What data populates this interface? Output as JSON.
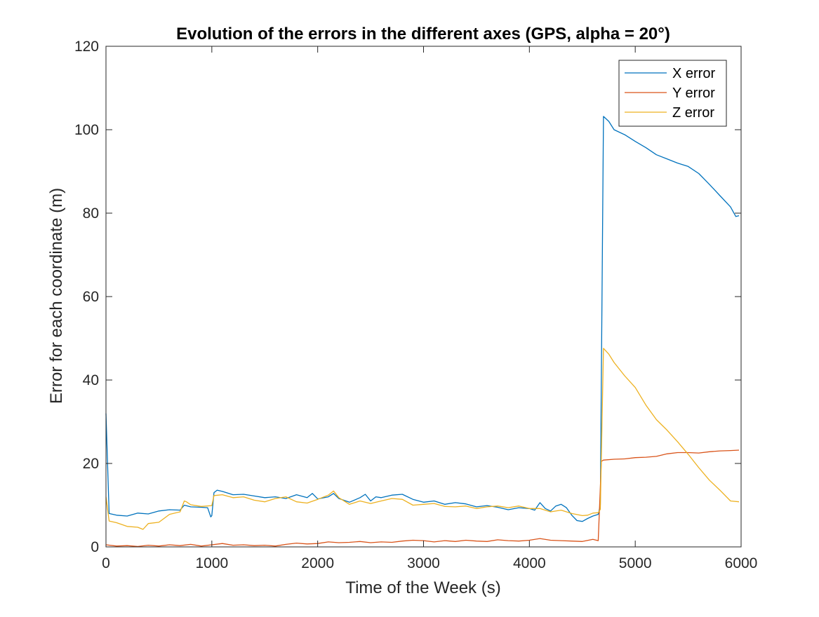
{
  "chart_data": {
    "type": "line",
    "title": "Evolution of the errors in the different axes (GPS, alpha = 20°)",
    "xlabel": "Time of the Week (s)",
    "ylabel": "Error for each coordinate (m)",
    "xlim": [
      0,
      6000
    ],
    "ylim": [
      0,
      120
    ],
    "xticks": [
      0,
      1000,
      2000,
      3000,
      4000,
      5000,
      6000
    ],
    "yticks": [
      0,
      20,
      40,
      60,
      80,
      100,
      120
    ],
    "xtick_labels": [
      "0",
      "1000",
      "2000",
      "3000",
      "4000",
      "5000",
      "6000"
    ],
    "ytick_labels": [
      "0",
      "20",
      "40",
      "60",
      "80",
      "100",
      "120"
    ],
    "grid": false,
    "box": true,
    "legend_position": "top-right",
    "series": [
      {
        "name": "X error",
        "color": "#0072BD",
        "x": [
          0,
          30,
          100,
          200,
          300,
          400,
          500,
          600,
          700,
          740,
          800,
          900,
          960,
          990,
          1000,
          1020,
          1050,
          1100,
          1200,
          1300,
          1400,
          1500,
          1600,
          1700,
          1800,
          1900,
          1950,
          2000,
          2100,
          2150,
          2200,
          2300,
          2400,
          2450,
          2500,
          2550,
          2600,
          2700,
          2800,
          2900,
          3000,
          3100,
          3200,
          3300,
          3400,
          3500,
          3600,
          3700,
          3800,
          3900,
          4000,
          4050,
          4100,
          4150,
          4200,
          4250,
          4300,
          4350,
          4400,
          4450,
          4500,
          4550,
          4600,
          4650,
          4670,
          4700,
          4750,
          4800,
          4900,
          5000,
          5100,
          5200,
          5300,
          5400,
          5500,
          5600,
          5700,
          5800,
          5900,
          5950,
          5980
        ],
        "values": [
          32,
          8,
          7.6,
          7.4,
          8.1,
          7.9,
          8.6,
          8.9,
          8.8,
          10,
          9.6,
          9.5,
          9.4,
          7.2,
          7.5,
          13,
          13.6,
          13.3,
          12.5,
          12.6,
          12.2,
          11.8,
          12,
          11.6,
          12.5,
          11.8,
          12.8,
          11.5,
          12,
          12.8,
          11.6,
          10.7,
          11.8,
          12.6,
          11,
          12,
          11.8,
          12.4,
          12.6,
          11.4,
          10.7,
          11,
          10.2,
          10.6,
          10.3,
          9.6,
          9.9,
          9.5,
          8.9,
          9.4,
          9.2,
          8.8,
          10.6,
          9.2,
          8.6,
          9.8,
          10.2,
          9.4,
          7.6,
          6.3,
          6.1,
          6.8,
          7.4,
          7.8,
          10,
          103.2,
          102,
          100,
          98.8,
          97.2,
          95.7,
          94,
          93,
          92,
          91.2,
          89.5,
          86.9,
          84.2,
          81.5,
          79.2,
          79.4
        ]
      },
      {
        "name": "Y error",
        "color": "#D95319",
        "x": [
          0,
          100,
          200,
          300,
          400,
          500,
          600,
          700,
          800,
          900,
          1000,
          1100,
          1200,
          1300,
          1400,
          1500,
          1600,
          1700,
          1800,
          1900,
          2000,
          2100,
          2200,
          2300,
          2400,
          2500,
          2600,
          2700,
          2800,
          2900,
          3000,
          3100,
          3200,
          3300,
          3400,
          3500,
          3600,
          3700,
          3800,
          3900,
          4000,
          4100,
          4200,
          4300,
          4400,
          4500,
          4600,
          4650,
          4680,
          4700,
          4800,
          4900,
          5000,
          5100,
          5200,
          5300,
          5400,
          5500,
          5600,
          5700,
          5800,
          5900,
          5980
        ],
        "values": [
          0.5,
          0.2,
          0.3,
          0.1,
          0.4,
          0.2,
          0.5,
          0.3,
          0.6,
          0.2,
          0.5,
          0.8,
          0.4,
          0.5,
          0.3,
          0.4,
          0.2,
          0.6,
          0.9,
          0.7,
          0.8,
          1.2,
          1.0,
          1.1,
          1.3,
          1.0,
          1.2,
          1.1,
          1.4,
          1.6,
          1.5,
          1.2,
          1.5,
          1.3,
          1.6,
          1.4,
          1.3,
          1.7,
          1.5,
          1.4,
          1.6,
          2.0,
          1.6,
          1.5,
          1.4,
          1.3,
          1.8,
          1.5,
          20.5,
          20.8,
          21.0,
          21.1,
          21.4,
          21.5,
          21.7,
          22.3,
          22.6,
          22.6,
          22.5,
          22.8,
          23.0,
          23.1,
          23.2
        ]
      },
      {
        "name": "Z error",
        "color": "#EDB120",
        "x": [
          0,
          30,
          100,
          200,
          300,
          350,
          400,
          500,
          600,
          700,
          740,
          760,
          800,
          900,
          1000,
          1020,
          1100,
          1200,
          1300,
          1400,
          1500,
          1600,
          1700,
          1800,
          1900,
          2000,
          2100,
          2150,
          2200,
          2300,
          2400,
          2500,
          2600,
          2700,
          2800,
          2900,
          3000,
          3100,
          3200,
          3300,
          3400,
          3500,
          3600,
          3700,
          3800,
          3900,
          4000,
          4100,
          4200,
          4300,
          4400,
          4500,
          4550,
          4600,
          4650,
          4670,
          4700,
          4750,
          4800,
          4900,
          5000,
          5100,
          5200,
          5300,
          5400,
          5500,
          5600,
          5700,
          5800,
          5900,
          5980
        ],
        "values": [
          12,
          6.2,
          5.8,
          4.9,
          4.7,
          4.2,
          5.6,
          5.9,
          7.8,
          8.4,
          11.0,
          10.8,
          10.1,
          9.7,
          9.9,
          12.3,
          12.5,
          11.8,
          12.0,
          11.2,
          10.8,
          11.6,
          12.0,
          10.8,
          10.5,
          11.4,
          12.4,
          13.4,
          11.8,
          10.2,
          11.0,
          10.4,
          11.0,
          11.6,
          11.4,
          10.0,
          10.2,
          10.4,
          9.7,
          9.6,
          9.8,
          9.2,
          9.6,
          9.8,
          9.4,
          9.8,
          9.2,
          9.2,
          8.4,
          8.8,
          8.0,
          7.5,
          7.6,
          8.1,
          8.2,
          9.0,
          47.6,
          46.2,
          44.2,
          41.0,
          38.2,
          34.0,
          30.5,
          28.0,
          25.2,
          22.2,
          19.0,
          16.0,
          13.6,
          11.0,
          10.8
        ]
      }
    ]
  }
}
